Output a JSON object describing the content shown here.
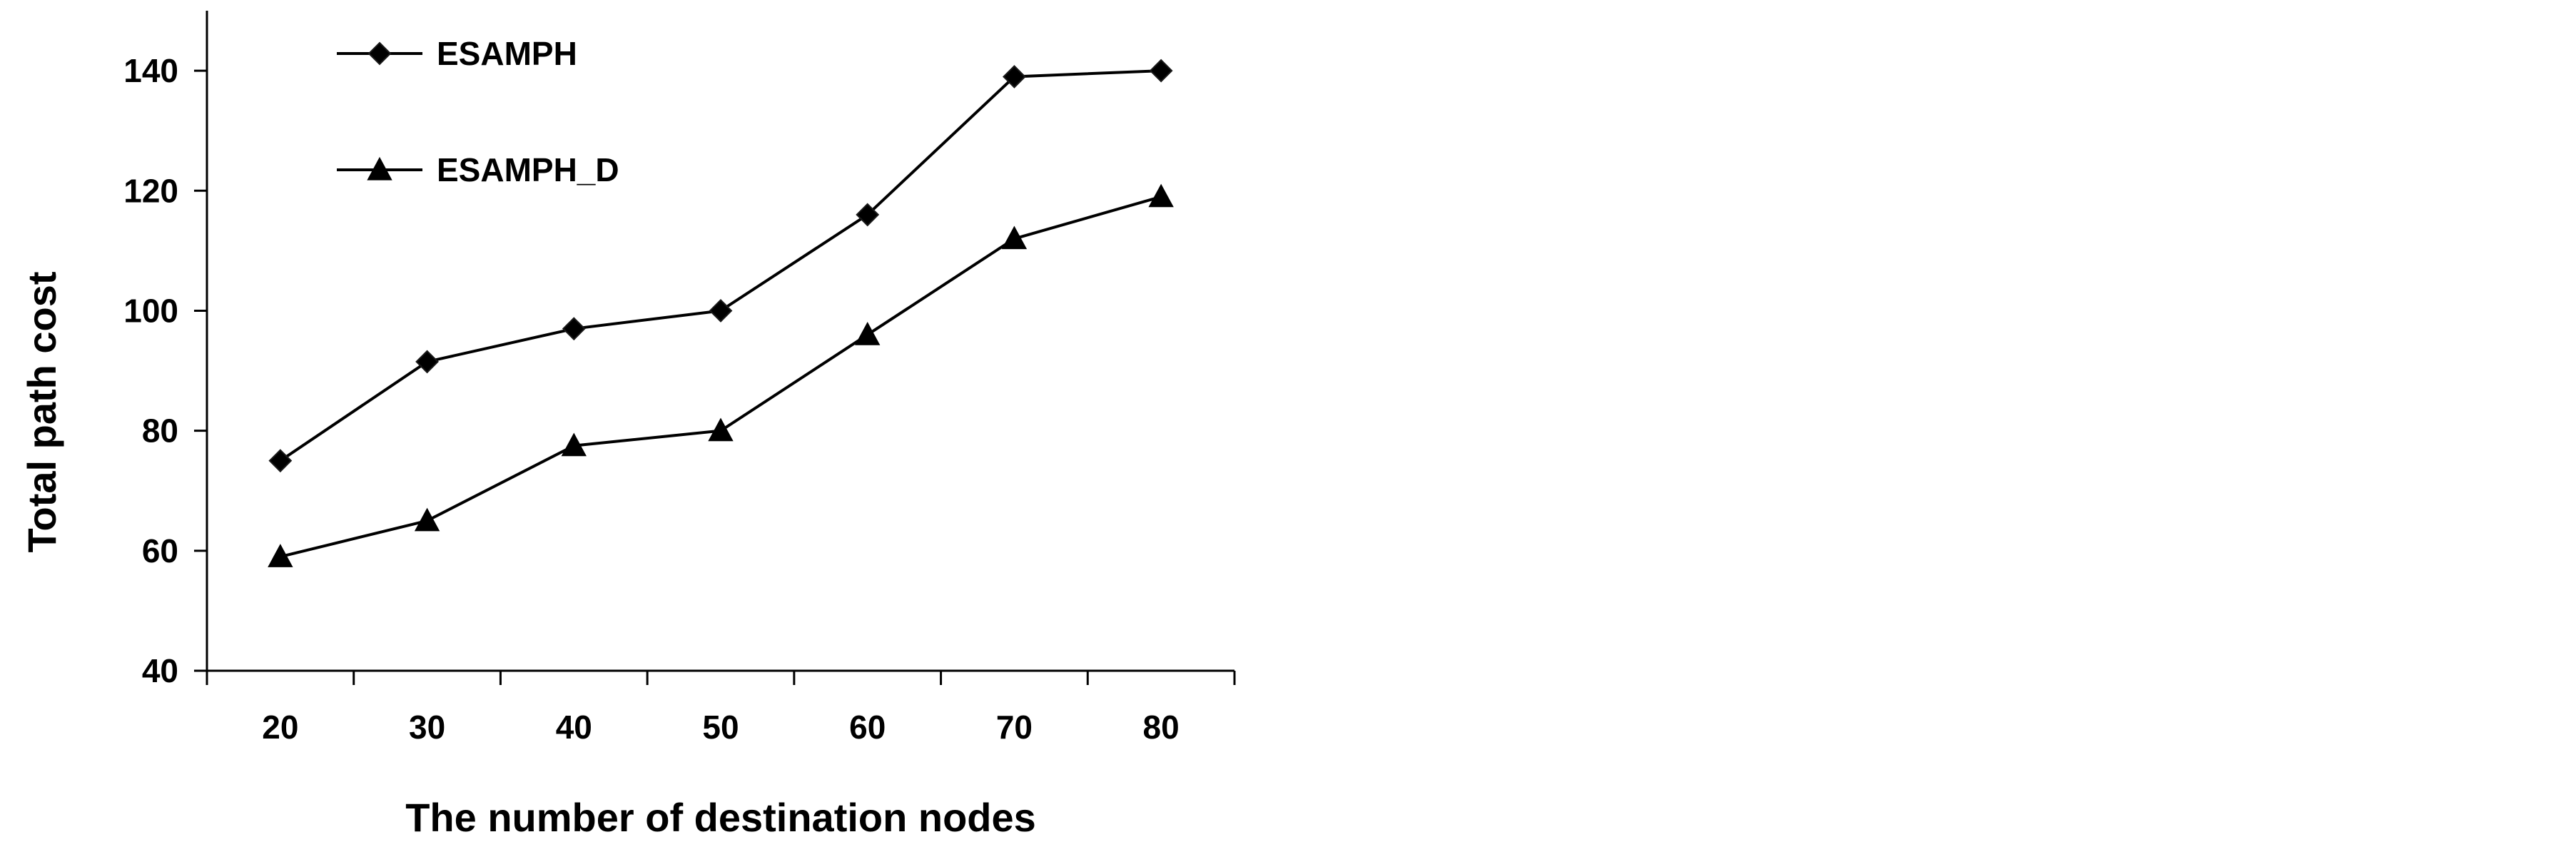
{
  "chart_data": {
    "type": "line",
    "title": "",
    "xlabel": "The number of destination nodes",
    "ylabel": "Total path cost",
    "x": [
      20,
      30,
      40,
      50,
      60,
      70,
      80
    ],
    "x_tick_labels": [
      "20",
      "30",
      "40",
      "50",
      "60",
      "70",
      "80"
    ],
    "y_tick_labels": [
      "40",
      "60",
      "80",
      "100",
      "120",
      "140"
    ],
    "ylim": [
      40,
      150
    ],
    "grid": false,
    "legend_position": "top-left",
    "series": [
      {
        "name": "ESAMPH",
        "marker": "diamond",
        "color": "#000000",
        "marker_color": "#000000",
        "values": [
          75,
          91.5,
          97,
          100,
          116,
          139,
          140
        ]
      },
      {
        "name": "ESAMPH_D",
        "marker": "triangle",
        "color": "#000000",
        "marker_color": "#000000",
        "values": [
          59,
          65,
          77.5,
          80,
          96,
          112,
          119
        ]
      }
    ]
  }
}
